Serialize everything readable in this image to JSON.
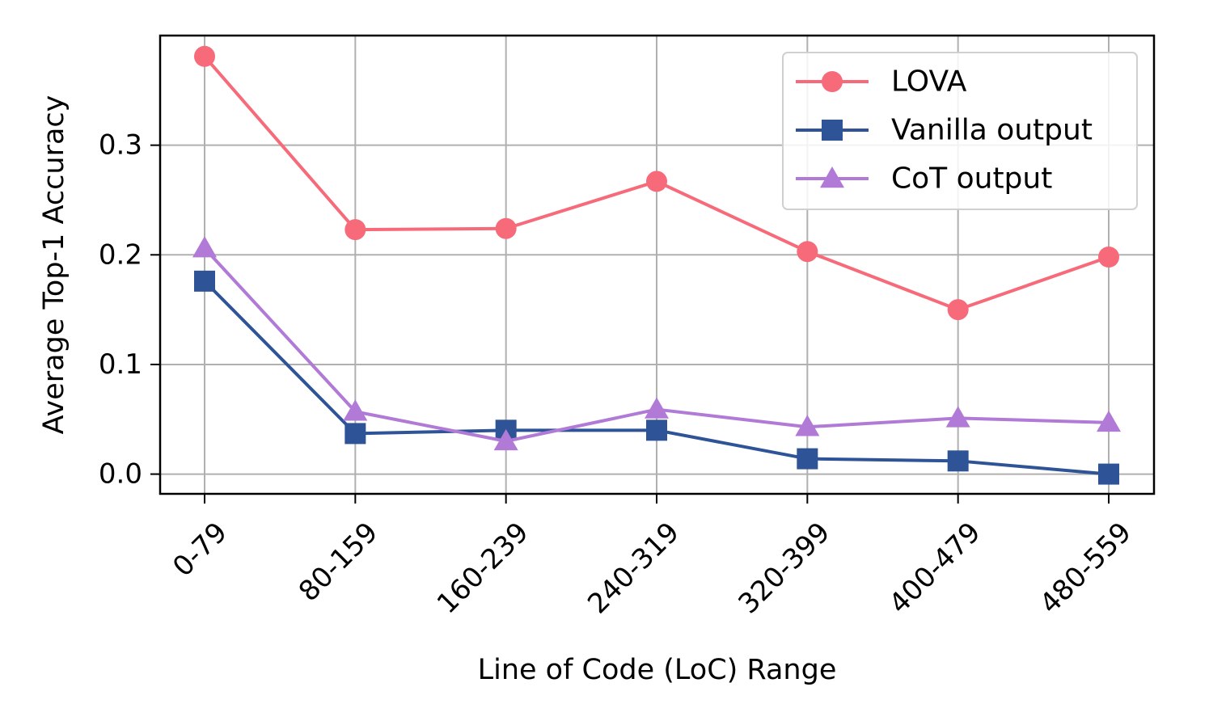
{
  "chart_data": {
    "type": "line",
    "title": "",
    "xlabel": "Line of Code (LoC) Range",
    "ylabel": "Average Top-1 Accuracy",
    "categories": [
      "0-79",
      "80-159",
      "160-239",
      "240-319",
      "320-399",
      "400-479",
      "480-559"
    ],
    "ylim": [
      -0.018,
      0.4
    ],
    "yticks": [
      0.0,
      0.1,
      0.2,
      0.3
    ],
    "ytick_labels": [
      "0.0",
      "0.1",
      "0.2",
      "0.3"
    ],
    "grid": true,
    "legend_position": "top-right",
    "series": [
      {
        "name": "LOVA",
        "color": "#f76a79",
        "marker": "circle",
        "values": [
          0.381,
          0.223,
          0.224,
          0.267,
          0.203,
          0.15,
          0.198
        ]
      },
      {
        "name": "Vanilla output",
        "color": "#2e5497",
        "marker": "square",
        "values": [
          0.176,
          0.037,
          0.04,
          0.04,
          0.014,
          0.012,
          0.0
        ]
      },
      {
        "name": "CoT output",
        "color": "#b07ad6",
        "marker": "triangle",
        "values": [
          0.206,
          0.057,
          0.03,
          0.059,
          0.043,
          0.051,
          0.047
        ]
      }
    ]
  }
}
